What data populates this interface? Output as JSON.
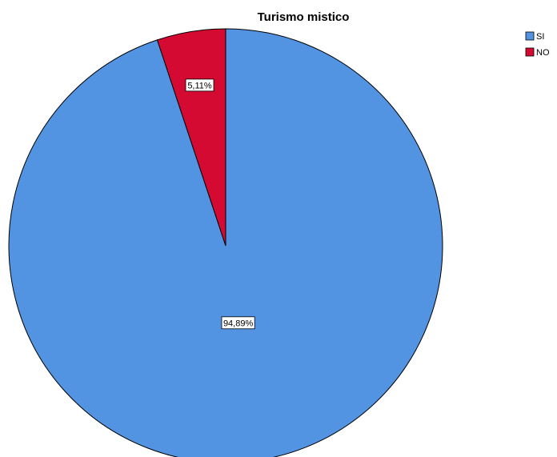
{
  "chart_data": {
    "type": "pie",
    "title": "Turismo mistico",
    "categories": [
      "SI",
      "NO"
    ],
    "values": [
      94.89,
      5.11
    ],
    "data_labels": [
      "94,89%",
      "5,11%"
    ],
    "colors": [
      "#5294e2",
      "#d40a32"
    ],
    "legend": {
      "position": "top-right",
      "entries": [
        "SI",
        "NO"
      ]
    }
  }
}
